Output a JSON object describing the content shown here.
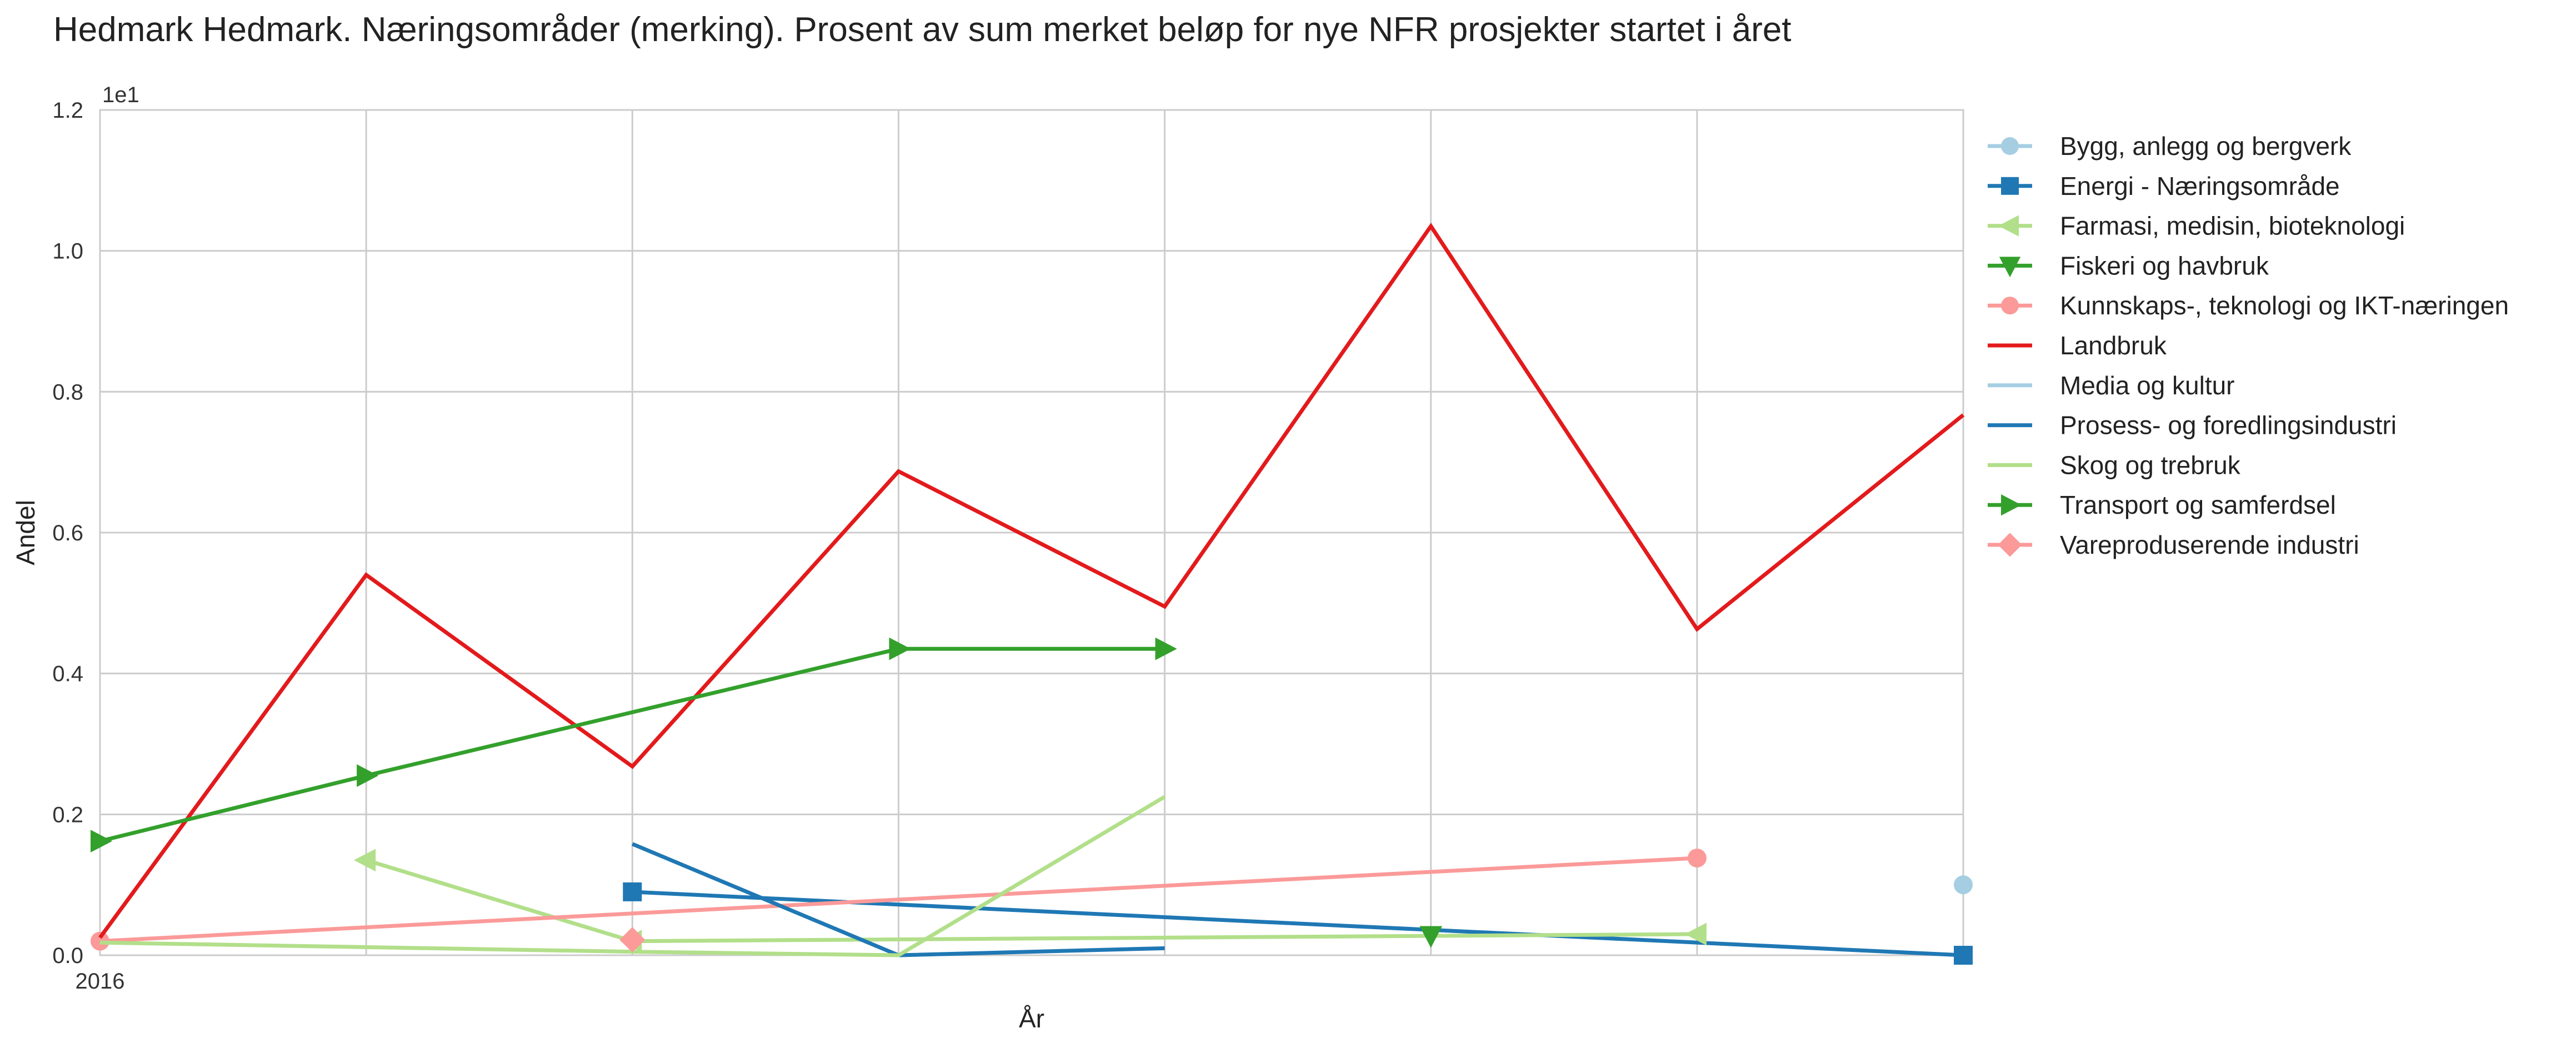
{
  "chart_data": {
    "type": "line",
    "title": "Hedmark Hedmark. Næringsområder (merking). Prosent av sum merket beløp for nye NFR prosjekter startet i året",
    "xlabel": "År",
    "ylabel": "Andel",
    "y_scale_label": "1e1",
    "x_tick_labels": [
      "2016"
    ],
    "y_tick_labels": [
      "0.0",
      "0.2",
      "0.4",
      "0.6",
      "0.8",
      "1.0",
      "1.2"
    ],
    "y_ticks": [
      0,
      2,
      4,
      6,
      8,
      10,
      12
    ],
    "xlim": [
      0,
      7
    ],
    "ylim": [
      0,
      12
    ],
    "grid": true,
    "legend_position": "outside-right",
    "x": [
      0,
      1,
      2,
      3,
      4,
      5,
      6,
      7
    ],
    "series": [
      {
        "name": "Bygg, anlegg og bergverk",
        "color": "#a6cee3",
        "marker": "circle",
        "values": [
          null,
          null,
          null,
          null,
          null,
          null,
          null,
          1.0
        ]
      },
      {
        "name": "Energi - Næringsområde",
        "color": "#1f78b4",
        "marker": "square",
        "values": [
          null,
          null,
          0.9,
          null,
          null,
          null,
          null,
          0.0
        ]
      },
      {
        "name": "Farmasi, medisin, bioteknologi",
        "color": "#b2df8a",
        "marker": "triangle-left",
        "values": [
          null,
          1.35,
          0.2,
          null,
          null,
          null,
          0.3,
          null
        ]
      },
      {
        "name": "Fiskeri og havbruk",
        "color": "#33a02c",
        "marker": "triangle-down",
        "values": [
          null,
          null,
          null,
          null,
          null,
          0.28,
          null,
          null
        ]
      },
      {
        "name": "Kunnskaps-, teknologi og IKT-næringen",
        "color": "#fb9a99",
        "marker": "circle",
        "values": [
          0.2,
          null,
          null,
          null,
          null,
          null,
          1.38,
          null
        ]
      },
      {
        "name": "Landbruk",
        "color": "#e31a1c",
        "marker": "none",
        "values": [
          0.25,
          5.4,
          2.68,
          6.87,
          4.95,
          10.35,
          4.63,
          7.67
        ]
      },
      {
        "name": "Media og kultur",
        "color": "#a6cee3",
        "marker": "none",
        "values": [
          null,
          null,
          null,
          null,
          null,
          null,
          null,
          null
        ]
      },
      {
        "name": "Prosess- og foredlingsindustri",
        "color": "#1f78b4",
        "marker": "none",
        "values": [
          null,
          null,
          1.58,
          0.0,
          0.1,
          null,
          null,
          null
        ]
      },
      {
        "name": "Skog og trebruk",
        "color": "#b2df8a",
        "marker": "none",
        "values": [
          0.18,
          null,
          0.05,
          0.0,
          2.25,
          null,
          null,
          null
        ]
      },
      {
        "name": "Transport og samferdsel",
        "color": "#33a02c",
        "marker": "triangle-right",
        "values": [
          1.62,
          2.55,
          null,
          4.35,
          4.35,
          null,
          null,
          null
        ]
      },
      {
        "name": "Vareproduserende industri",
        "color": "#fb9a99",
        "marker": "diamond",
        "values": [
          null,
          null,
          0.22,
          null,
          null,
          null,
          null,
          null
        ]
      }
    ]
  }
}
